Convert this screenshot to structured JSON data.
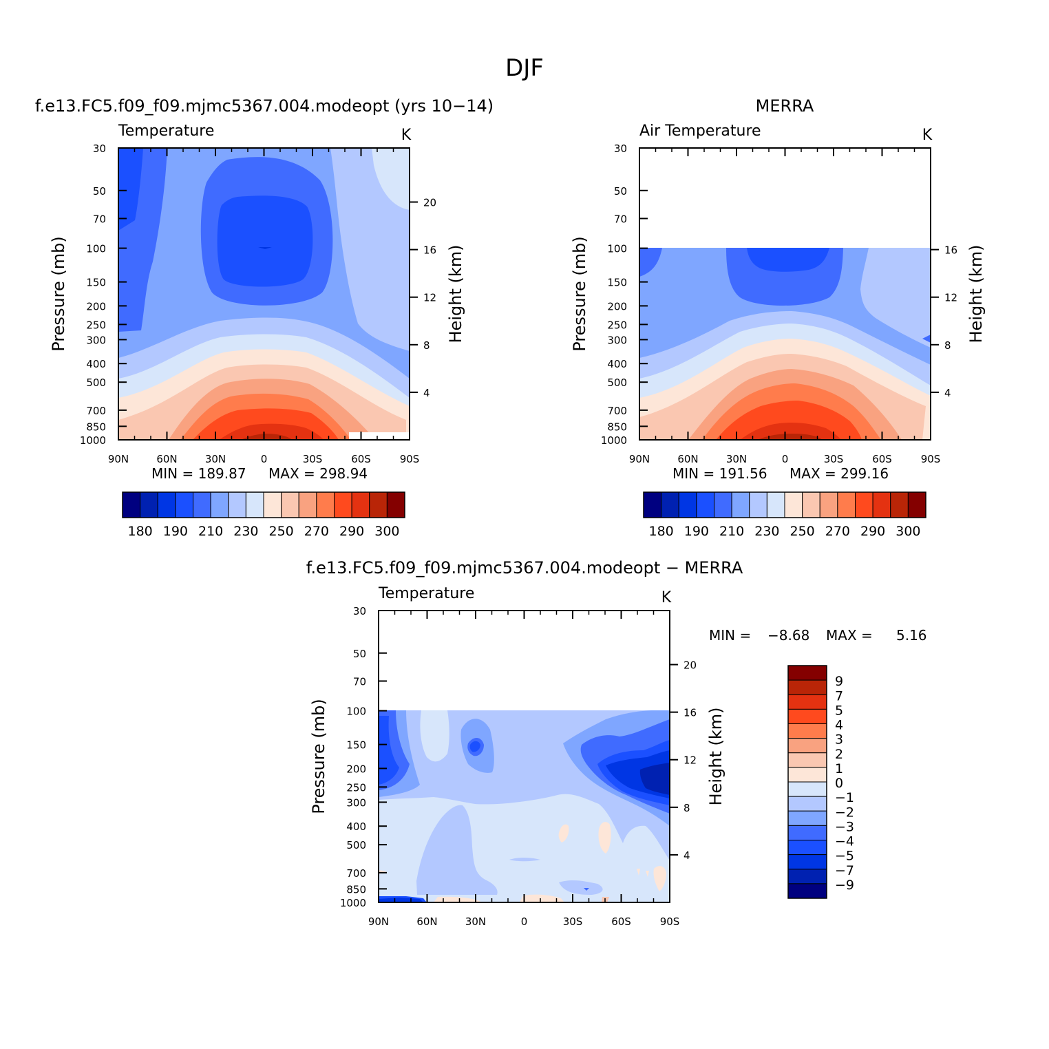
{
  "page": {
    "title": "DJF"
  },
  "colors": {
    "abs_scale": [
      "#000080",
      "#0021b1",
      "#0036e4",
      "#1b50ff",
      "#406bff",
      "#7fa6ff",
      "#b3c8ff",
      "#d7e6fb",
      "#fde6d8",
      "#fac7b1",
      "#f9a280",
      "#ff7c4c",
      "#ff4a1e",
      "#e43211",
      "#b92507",
      "#840000"
    ],
    "diff_scale": [
      "#840000",
      "#b92507",
      "#e43211",
      "#ff4a1e",
      "#ff7c4c",
      "#f9a280",
      "#fac7b1",
      "#fde6d8",
      "#d7e6fb",
      "#b3c8ff",
      "#7fa6ff",
      "#406bff",
      "#1b50ff",
      "#0036e4",
      "#0021b1",
      "#000080"
    ]
  },
  "chart_data": [
    {
      "type": "heatmap",
      "name": "model",
      "title": "f.e13.FC5.f09_f09.mjmc5367.004.modeopt (yrs 10−14)",
      "left_label": "Temperature",
      "units": "K",
      "ylabel": "Pressure (mb)",
      "y2label": "Height (km)",
      "x_ticks": [
        "90N",
        "60N",
        "30N",
        "0",
        "30S",
        "60S",
        "90S"
      ],
      "y_ticks": [
        "30",
        "50",
        "70",
        "100",
        "150",
        "200",
        "250",
        "300",
        "400",
        "500",
        "700",
        "850",
        "1000"
      ],
      "y2_ticks": [
        "20",
        "16",
        "12",
        "8",
        "4"
      ],
      "min_label": "MIN = 189.87",
      "max_label": "MAX = 298.94",
      "min": 189.87,
      "max": 298.94,
      "colorbar_labels": [
        "180",
        "190",
        "210",
        "230",
        "250",
        "270",
        "290",
        "300"
      ],
      "top_pressure": 30
    },
    {
      "type": "heatmap",
      "name": "merra",
      "title": "MERRA",
      "left_label": "Air Temperature",
      "units": "K",
      "ylabel": "Pressure (mb)",
      "y2label": "Height (km)",
      "x_ticks": [
        "90N",
        "60N",
        "30N",
        "0",
        "30S",
        "60S",
        "90S"
      ],
      "y_ticks": [
        "30",
        "50",
        "70",
        "100",
        "150",
        "200",
        "250",
        "300",
        "400",
        "500",
        "700",
        "850",
        "1000"
      ],
      "y2_ticks": [
        "16",
        "12",
        "8",
        "4"
      ],
      "min_label": "MIN = 191.56",
      "max_label": "MAX = 299.16",
      "min": 191.56,
      "max": 299.16,
      "colorbar_labels": [
        "180",
        "190",
        "210",
        "230",
        "250",
        "270",
        "290",
        "300"
      ],
      "top_pressure": 100
    },
    {
      "type": "heatmap",
      "name": "difference",
      "title": "f.e13.FC5.f09_f09.mjmc5367.004.modeopt − MERRA",
      "left_label": "Temperature",
      "units": "K",
      "ylabel": "Pressure (mb)",
      "y2label": "Height (km)",
      "x_ticks": [
        "90N",
        "60N",
        "30N",
        "0",
        "30S",
        "60S",
        "90S"
      ],
      "y_ticks": [
        "30",
        "50",
        "70",
        "100",
        "150",
        "200",
        "250",
        "300",
        "400",
        "500",
        "700",
        "850",
        "1000"
      ],
      "y2_ticks": [
        "20",
        "16",
        "12",
        "8",
        "4"
      ],
      "min_label": "MIN =",
      "min_value": "−8.68",
      "max_label": "MAX =",
      "max_value": "5.16",
      "min": -8.68,
      "max": 5.16,
      "colorbar_labels": [
        "9",
        "7",
        "5",
        "4",
        "3",
        "2",
        "1",
        "0",
        "−1",
        "−2",
        "−3",
        "−4",
        "−5",
        "−7",
        "−9"
      ],
      "top_pressure": 100
    }
  ]
}
